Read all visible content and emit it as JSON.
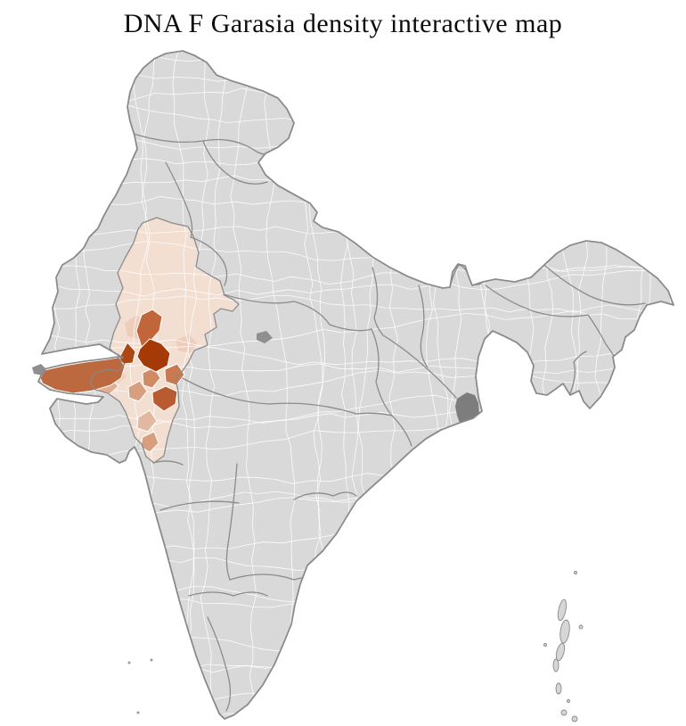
{
  "title": "DNA F Garasia density interactive map",
  "map": {
    "label": "India district choropleth map",
    "colors": {
      "background": "#ffffff",
      "base": "#d9d9d9",
      "district_border": "#ffffff",
      "state_border": "#878787",
      "coast": "#8a8a8a",
      "delta_dark": "#7d7d7d",
      "creek_dark": "#8f8f8f",
      "island": "#d6d6d6",
      "island_dot": "#9a9a9a",
      "level1": "#f3ded2",
      "level2": "#eecdbb",
      "level3": "#e2b9a0",
      "level3b": "#e0af92",
      "level4": "#d89f7f",
      "level5": "#d08a64",
      "level6": "#c97a52",
      "level7": "#c1653a",
      "level7b": "#bd6940",
      "level8": "#b95b31",
      "level9": "#ad4814",
      "level10": "#a63a06"
    },
    "regions": [
      {
        "name": "northwest-low-density-region",
        "color": "#f3ded2",
        "shade": "very light"
      },
      {
        "name": "west-large-district-medium",
        "color": "#bd6940",
        "shade": "medium"
      },
      {
        "name": "central-highlight-medium",
        "color": "#c1653a",
        "shade": "medium"
      },
      {
        "name": "central-highlight-darkest",
        "color": "#a63a06",
        "shade": "darkest"
      },
      {
        "name": "central-highlight-dark",
        "color": "#ad4814",
        "shade": "dark"
      },
      {
        "name": "south-highlight-dark-medium",
        "color": "#b95b31",
        "shade": "dark medium"
      },
      {
        "name": "south-highlight-medium",
        "color": "#c97a52",
        "shade": "medium"
      },
      {
        "name": "south-highlight-medium-2",
        "color": "#d08a64",
        "shade": "medium light"
      },
      {
        "name": "south-highlight-light-medium",
        "color": "#d89f7f",
        "shade": "light medium"
      },
      {
        "name": "light-patches",
        "color": "#eecdbb",
        "shade": "light"
      }
    ]
  }
}
